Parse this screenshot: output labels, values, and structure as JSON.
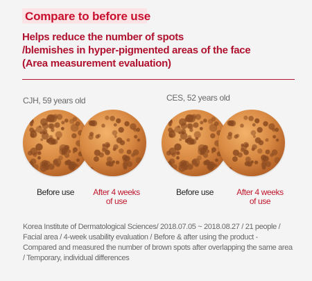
{
  "heading": {
    "badge": "Compare to before use",
    "subtitle": "Helps reduce the number of spots\n/blemishes in hyper-pigmented areas of the face\n(Area measurement evaluation)"
  },
  "subjects": [
    {
      "name": "CJH, 59 years old",
      "before_label": "Before use",
      "after_label": "After 4 weeks\nof use"
    },
    {
      "name": "CES, 52 years old",
      "before_label": "Before use",
      "after_label": "After 4 weeks\nof use"
    }
  ],
  "footnote": "Korea Institute of Dermatological Sciences/ 2018.07.05 ~ 2018.08.27 / 21 people / Facial area / 4-week usability evaluation / Before & after using the product - Compared and measured the number of brown spots after overlapping the same area / Temporary, individual differences",
  "colors": {
    "accent": "#c8102e",
    "badge_bg": "#fbe3e6",
    "skin": "#d98a43",
    "spot": "#8a4a20",
    "background": "#f4f4f4"
  }
}
